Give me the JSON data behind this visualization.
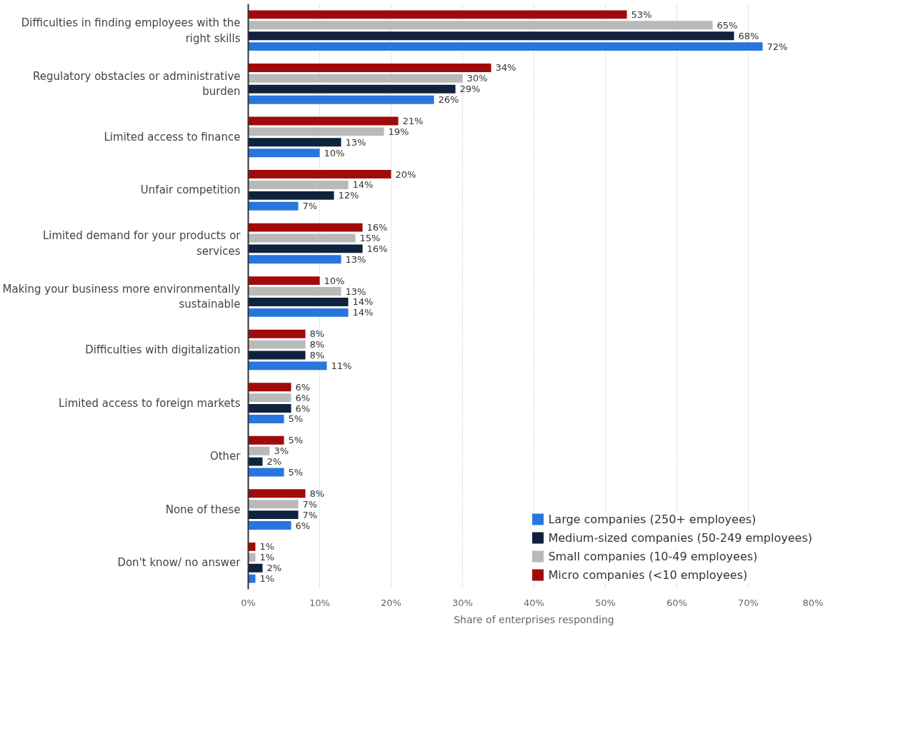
{
  "chart_data": {
    "type": "bar",
    "orientation": "horizontal",
    "xlabel": "Share of enterprises responding",
    "categories": [
      "Difficulties in finding employees with the right skills",
      "Regulatory obstacles or administrative burden",
      "Limited access to finance",
      "Unfair competition",
      "Limited demand for your products or services",
      "Making your business more environmentally sustainable",
      "Difficulties with digitalization",
      "Limited access to foreign markets",
      "Other",
      "None of these",
      "Don't know/ no answer"
    ],
    "series": [
      {
        "name": "Large companies (250+ employees)",
        "color": "#2876dd",
        "values": [
          72,
          26,
          10,
          7,
          13,
          14,
          11,
          5,
          5,
          6,
          1
        ],
        "value_labels": [
          "72%",
          "26%",
          "10%",
          "7%",
          "13%",
          "14%",
          "11%",
          "5%",
          "5%",
          "6%",
          "1%"
        ]
      },
      {
        "name": "Medium-sized companies (50-249 employees)",
        "color": "#0f233f",
        "values": [
          68,
          29,
          13,
          12,
          16,
          14,
          8,
          6,
          2,
          7,
          2
        ],
        "value_labels": [
          "68%",
          "29%",
          "13%",
          "12%",
          "16%",
          "14%",
          "8%",
          "6%",
          "2%",
          "7%",
          "2%"
        ]
      },
      {
        "name": "Small companies (10-49 employees)",
        "color": "#b9b9b9",
        "values": [
          65,
          30,
          19,
          14,
          15,
          13,
          8,
          6,
          3,
          7,
          1
        ],
        "value_labels": [
          "65%",
          "30%",
          "19%",
          "14%",
          "15%",
          "13%",
          "8%",
          "6%",
          "3%",
          "7%",
          "1%"
        ]
      },
      {
        "name": "Micro companies (<10 employees)",
        "color": "#a10a0a",
        "values": [
          53,
          34,
          21,
          20,
          16,
          10,
          8,
          6,
          5,
          8,
          1
        ],
        "value_labels": [
          "53%",
          "34%",
          "21%",
          "20%",
          "16%",
          "10%",
          "8%",
          "6%",
          "5%",
          "8%",
          "1%"
        ]
      }
    ],
    "xlim": [
      0,
      80
    ],
    "xticks": [
      {
        "value": 0,
        "label": "0%"
      },
      {
        "value": 10,
        "label": "10%"
      },
      {
        "value": 20,
        "label": "20%"
      },
      {
        "value": 30,
        "label": "30%"
      },
      {
        "value": 40,
        "label": "40%"
      },
      {
        "value": 50,
        "label": "50%"
      },
      {
        "value": 60,
        "label": "60%"
      },
      {
        "value": 70,
        "label": "70%"
      },
      {
        "value": 80,
        "label": "80%"
      }
    ],
    "grid": "x",
    "legend": "bottom right"
  }
}
